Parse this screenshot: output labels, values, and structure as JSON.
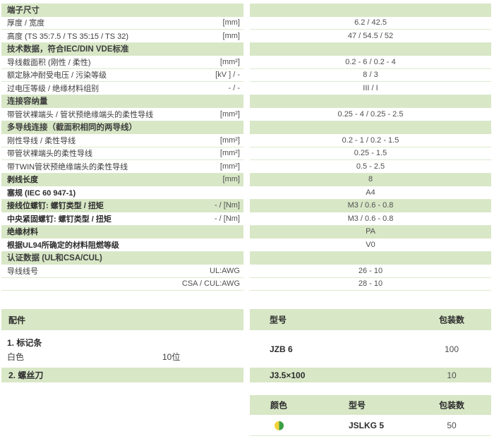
{
  "theme": {
    "header_green": "#d8e7c6",
    "row_line": "#dcebcf",
    "swatch_yellow": "#f1d23a",
    "swatch_green": "#3aa044"
  },
  "spec_table": {
    "rows": [
      {
        "type": "header",
        "label": "端子尺寸"
      },
      {
        "type": "data",
        "label": "厚度 / 宽度",
        "unit": "[mm]",
        "value": "6.2 / 42.5"
      },
      {
        "type": "data",
        "label": "高度 (TS 35:7.5 / TS 35:15 / TS 32)",
        "unit": "[mm]",
        "value": "47 / 54.5 / 52"
      },
      {
        "type": "header",
        "label": "技术数据，符合IEC/DIN VDE标准"
      },
      {
        "type": "data",
        "label": "导线截面积 (刚性 / 柔性)",
        "unit": "[mm²]",
        "value": "0.2 - 6 / 0.2 - 4"
      },
      {
        "type": "data",
        "label": "额定脉冲耐受电压 / 污染等级",
        "unit": "[kV ] / -",
        "value": "8 / 3"
      },
      {
        "type": "data",
        "label": "过电压等级 / 绝缘材料组别",
        "unit": "- / -",
        "value": "III / I"
      },
      {
        "type": "header",
        "label": "连接容纳量"
      },
      {
        "type": "data",
        "label": "带管状裸端头 / 管状预绝缘端头的柔性导线",
        "unit": "[mm²]",
        "value": "0.25 - 4 / 0.25 - 2.5"
      },
      {
        "type": "header",
        "label": "多导线连接（截面积相同的两导线）"
      },
      {
        "type": "data",
        "label": "刚性导线 / 柔性导线",
        "unit": "[mm²]",
        "value": "0.2 - 1 / 0.2 - 1.5"
      },
      {
        "type": "data",
        "label": "带管状裸端头的柔性导线",
        "unit": "[mm²]",
        "value": "0.25 - 1.5"
      },
      {
        "type": "data",
        "label": "带TWIN管状预绝缘端头的柔性导线",
        "unit": "[mm²]",
        "value": "0.5 - 2.5"
      },
      {
        "type": "data",
        "bold": true,
        "green": true,
        "label": "剥线长度",
        "unit": "[mm]",
        "value": "8"
      },
      {
        "type": "data",
        "bold": true,
        "label": "塞规 (IEC 60 947-1)",
        "unit": "",
        "value": "A4"
      },
      {
        "type": "data",
        "bold": true,
        "green": true,
        "label": "接线位螺钉: 螺钉类型 / 扭矩",
        "unit": "- / [Nm]",
        "value": "M3 / 0.6 - 0.8"
      },
      {
        "type": "data",
        "bold": true,
        "label": "中央紧固螺钉: 螺钉类型 / 扭矩",
        "unit": "- / [Nm]",
        "value": "M3 / 0.6 - 0.8"
      },
      {
        "type": "data",
        "bold": true,
        "green": true,
        "label": "绝缘材料",
        "unit": "",
        "value": "PA"
      },
      {
        "type": "data",
        "bold": true,
        "label": "根据UL94所确定的材料阻燃等级",
        "unit": "",
        "value": "V0"
      },
      {
        "type": "header",
        "label": "认证数据 (UL和CSA/CUL)"
      },
      {
        "type": "data",
        "label": "导线线号",
        "unit": "UL:AWG",
        "value": "26 - 10"
      },
      {
        "type": "data",
        "label": "",
        "unit": "CSA / CUL:AWG",
        "value": "28 - 10"
      }
    ]
  },
  "accessories": {
    "header": {
      "title": "配件",
      "model": "型号",
      "qty": "包装数"
    },
    "items": [
      {
        "name": "1. 标记条",
        "desc": "白色",
        "spec": "10位",
        "model": "JZB 6",
        "qty": "100"
      },
      {
        "name": "2. 螺丝刀",
        "model": "J3.5×100",
        "qty": "10"
      }
    ]
  },
  "color_table": {
    "header": {
      "color": "颜色",
      "model": "型号",
      "qty": "包装数"
    },
    "rows": [
      {
        "swatch": "green-yellow",
        "model": "JSLKG 5",
        "qty": "50"
      }
    ]
  }
}
